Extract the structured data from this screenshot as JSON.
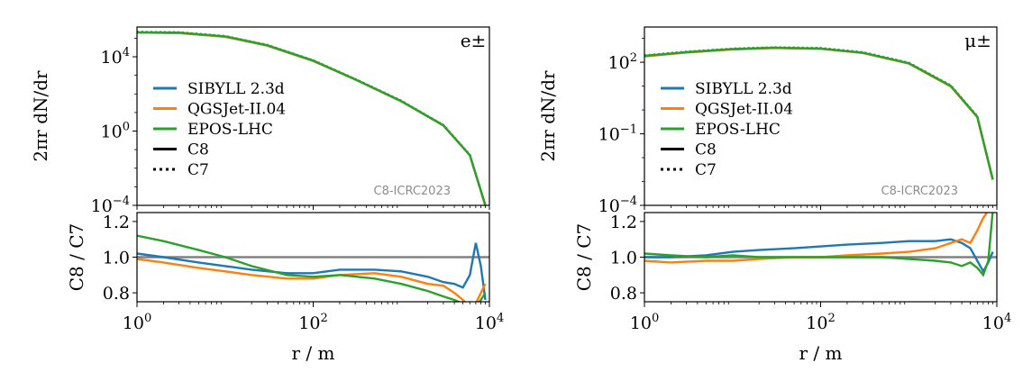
{
  "chart_data": [
    {
      "type": "line",
      "panel": "left",
      "particle_label": "e±",
      "watermark": "C8-ICRC2023",
      "main": {
        "ylabel": "2πr dN/dr",
        "xscale": "log",
        "yscale": "log",
        "xlim": [
          1,
          10000
        ],
        "ylim": [
          0.0001,
          400000
        ],
        "yticks": [
          {
            "v": 10000,
            "label": "10",
            "exp": "4"
          },
          {
            "v": 1,
            "label": "10",
            "exp": "0"
          },
          {
            "v": 0.0001,
            "label": "10",
            "exp": "−4"
          }
        ],
        "x": [
          1,
          3,
          10,
          30,
          100,
          300,
          1000,
          3000,
          6000,
          9000
        ],
        "series": [
          {
            "name": "SIBYLL 2.3d",
            "color": "#1f77b4",
            "values": [
              200000,
              190000,
              120000,
              40000,
              6000,
              600,
              40,
              2,
              0.05,
              0.0001
            ]
          },
          {
            "name": "QGSJet-II.04",
            "color": "#ff7f0e",
            "values": [
              200000,
              190000,
              120000,
              40000,
              6000,
              600,
              40,
              2,
              0.05,
              0.0001
            ]
          },
          {
            "name": "EPOS-LHC",
            "color": "#2ca02c",
            "values": [
              210000,
              200000,
              125000,
              42000,
              6200,
              610,
              41,
              2.05,
              0.05,
              0.0001
            ]
          }
        ]
      },
      "ratio": {
        "ylabel": "C8 / C7",
        "ylim": [
          0.75,
          1.25
        ],
        "yticks": [
          {
            "v": 0.8,
            "label": "0.8"
          },
          {
            "v": 1.0,
            "label": "1.0"
          },
          {
            "v": 1.2,
            "label": "1.2"
          }
        ],
        "reference": 1.0,
        "series": [
          {
            "name": "SIBYLL 2.3d",
            "color": "#1f77b4",
            "x": [
              1,
              2,
              5,
              10,
              20,
              50,
              100,
              200,
              500,
              1000,
              2000,
              3000,
              4000,
              5000,
              6000,
              7000,
              8000,
              9000
            ],
            "values": [
              1.02,
              1.0,
              0.97,
              0.95,
              0.93,
              0.91,
              0.91,
              0.93,
              0.93,
              0.92,
              0.89,
              0.86,
              0.85,
              0.83,
              0.9,
              1.08,
              0.95,
              0.76
            ]
          },
          {
            "name": "QGSJet-II.04",
            "color": "#ff7f0e",
            "x": [
              1,
              2,
              5,
              10,
              20,
              50,
              100,
              200,
              500,
              1000,
              2000,
              3000,
              4000,
              5000,
              6000,
              7000,
              8000,
              9000
            ],
            "values": [
              0.99,
              0.97,
              0.94,
              0.92,
              0.9,
              0.88,
              0.88,
              0.9,
              0.91,
              0.89,
              0.85,
              0.84,
              0.8,
              0.76,
              0.72,
              0.74,
              0.8,
              0.85
            ]
          },
          {
            "name": "EPOS-LHC",
            "color": "#2ca02c",
            "x": [
              1,
              2,
              5,
              10,
              20,
              50,
              100,
              200,
              500,
              1000,
              2000,
              3000,
              4000,
              5000,
              6000,
              7000,
              8000,
              9000
            ],
            "values": [
              1.12,
              1.09,
              1.04,
              1.0,
              0.95,
              0.9,
              0.89,
              0.9,
              0.88,
              0.85,
              0.81,
              0.78,
              0.76,
              0.74,
              0.74,
              0.72,
              0.76,
              0.8
            ]
          }
        ]
      },
      "xlabel": "r / m",
      "xticks": [
        {
          "v": 1,
          "label": "10",
          "exp": "0"
        },
        {
          "v": 100,
          "label": "10",
          "exp": "2"
        },
        {
          "v": 10000,
          "label": "10",
          "exp": "4"
        }
      ]
    },
    {
      "type": "line",
      "panel": "right",
      "particle_label": "μ±",
      "watermark": "C8-ICRC2023",
      "main": {
        "ylabel": "2πr dN/dr",
        "xscale": "log",
        "yscale": "log",
        "xlim": [
          1,
          10000
        ],
        "ylim": [
          0.0001,
          3000
        ],
        "yticks": [
          {
            "v": 100,
            "label": "10",
            "exp": "2"
          },
          {
            "v": 0.1,
            "label": "10",
            "exp": "−1"
          },
          {
            "v": 0.0001,
            "label": "10",
            "exp": "−4"
          }
        ],
        "x": [
          1,
          3,
          10,
          30,
          100,
          300,
          1000,
          3000,
          6000,
          9000
        ],
        "series": [
          {
            "name": "SIBYLL 2.3d",
            "color": "#1f77b4",
            "values": [
              180,
              260,
              350,
              400,
              370,
              250,
              90,
              10,
              0.5,
              0.0012
            ]
          },
          {
            "name": "QGSJet-II.04",
            "color": "#ff7f0e",
            "values": [
              175,
              255,
              345,
              395,
              365,
              245,
              88,
              9.6,
              0.5,
              0.0012
            ]
          },
          {
            "name": "EPOS-LHC",
            "color": "#2ca02c",
            "values": [
              185,
              265,
              355,
              405,
              375,
              252,
              91,
              10.2,
              0.52,
              0.0012
            ]
          }
        ]
      },
      "ratio": {
        "ylabel": "C8 / C7",
        "ylim": [
          0.75,
          1.25
        ],
        "yticks": [
          {
            "v": 0.8,
            "label": "0.8"
          },
          {
            "v": 1.0,
            "label": "1.0"
          },
          {
            "v": 1.2,
            "label": "1.2"
          }
        ],
        "reference": 1.0,
        "series": [
          {
            "name": "SIBYLL 2.3d",
            "color": "#1f77b4",
            "x": [
              1,
              2,
              5,
              10,
              20,
              50,
              100,
              200,
              500,
              1000,
              2000,
              3000,
              4000,
              5000,
              6000,
              7000,
              8000,
              9000
            ],
            "values": [
              1.0,
              1.0,
              1.01,
              1.03,
              1.04,
              1.05,
              1.06,
              1.07,
              1.08,
              1.09,
              1.09,
              1.1,
              1.08,
              1.05,
              0.98,
              0.92,
              0.97,
              1.03
            ]
          },
          {
            "name": "QGSJet-II.04",
            "color": "#ff7f0e",
            "x": [
              1,
              2,
              5,
              10,
              20,
              50,
              100,
              200,
              500,
              1000,
              2000,
              3000,
              4000,
              5000,
              6000,
              7000,
              8000,
              9000
            ],
            "values": [
              0.98,
              0.97,
              0.98,
              0.98,
              0.99,
              1.0,
              1.0,
              1.01,
              1.02,
              1.03,
              1.05,
              1.08,
              1.1,
              1.08,
              1.15,
              1.22,
              1.26,
              1.26
            ]
          },
          {
            "name": "EPOS-LHC",
            "color": "#2ca02c",
            "x": [
              1,
              2,
              5,
              10,
              20,
              50,
              100,
              200,
              500,
              1000,
              2000,
              3000,
              4000,
              5000,
              6000,
              7000,
              8000,
              9000
            ],
            "values": [
              1.02,
              1.01,
              1.0,
              1.01,
              1.0,
              1.0,
              1.0,
              1.0,
              1.0,
              0.99,
              0.98,
              0.97,
              0.95,
              0.97,
              0.94,
              0.9,
              0.98,
              1.26
            ]
          }
        ]
      },
      "xlabel": "r / m",
      "xticks": [
        {
          "v": 1,
          "label": "10",
          "exp": "0"
        },
        {
          "v": 100,
          "label": "10",
          "exp": "2"
        },
        {
          "v": 10000,
          "label": "10",
          "exp": "4"
        }
      ]
    }
  ],
  "legend": [
    {
      "label": "SIBYLL 2.3d",
      "color": "#1f77b4",
      "style": "solid"
    },
    {
      "label": "QGSJet-II.04",
      "color": "#ff7f0e",
      "style": "solid"
    },
    {
      "label": "EPOS-LHC",
      "color": "#2ca02c",
      "style": "solid"
    },
    {
      "label": "C8",
      "color": "#000000",
      "style": "solid"
    },
    {
      "label": "C7",
      "color": "#000000",
      "style": "dotted"
    }
  ],
  "reference_color": "#808080"
}
